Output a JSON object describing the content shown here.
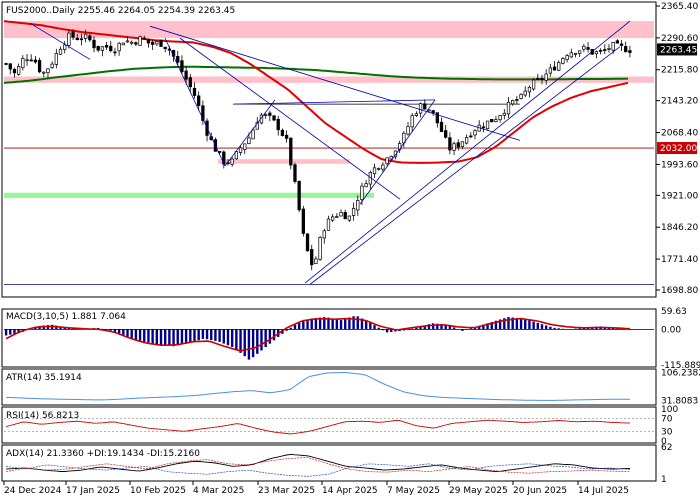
{
  "chart_data": {
    "type": "candlestick",
    "symbol": "FUS2000..Daily",
    "ohlc_header": "2255.46 2264.05 2254.39 2263.45",
    "x_labels": [
      "24 Dec 2024",
      "17 Jan 2025",
      "10 Feb 2025",
      "4 Mar 2025",
      "23 Mar 2025",
      "14 Apr 2025",
      "7 May 2025",
      "29 May 2025",
      "20 Jun 2025",
      "14 Jul 2025"
    ],
    "price_ticks": [
      "2365.40",
      "2290.60",
      "2215.80",
      "2143.20",
      "2068.40",
      "1993.60",
      "1921.00",
      "1846.20",
      "1771.40",
      "1698.80"
    ],
    "price_ylim": [
      1698.8,
      2365.4
    ],
    "current_price": "2263.45",
    "marked_level": "2032.00",
    "close_path": [
      2230,
      2205,
      2245,
      2245,
      2205,
      2230,
      2270,
      2295,
      2290,
      2292,
      2265,
      2270,
      2265,
      2285,
      2280,
      2290,
      2275,
      2280,
      2265,
      2230,
      2190,
      2150,
      2080,
      2035,
      2000,
      2000,
      2035,
      2060,
      2110,
      2105,
      2085,
      2050,
      1940,
      1810,
      1748,
      1840,
      1870,
      1880,
      1870,
      1920,
      1965,
      1990,
      2005,
      2030,
      2060,
      2110,
      2135,
      2120,
      2080,
      2030,
      2040,
      2060,
      2080,
      2090,
      2100,
      2120,
      2140,
      2150,
      2180,
      2190,
      2210,
      2230,
      2255,
      2262,
      2265,
      2255,
      2258,
      2272,
      2268,
      2263
    ],
    "ma_red": [
      2330,
      2325,
      2320,
      2312,
      2305,
      2300,
      2295,
      2290,
      2285,
      2282,
      2280,
      2270,
      2255,
      2230,
      2200,
      2170,
      2130,
      2090,
      2060,
      2030,
      2005,
      1998,
      1997,
      1998,
      2000,
      2010,
      2035,
      2070,
      2105,
      2130,
      2150,
      2165,
      2175,
      2185
    ],
    "ma_green": [
      2185,
      2190,
      2198,
      2205,
      2212,
      2218,
      2221,
      2223,
      2222,
      2221,
      2220,
      2218,
      2215,
      2210,
      2205,
      2200,
      2197,
      2195,
      2194,
      2193,
      2193,
      2193,
      2194,
      2194,
      2195
    ],
    "zones": [
      {
        "from": 2290,
        "to": 2330,
        "color": "#ffc0cb"
      },
      {
        "from": 2185,
        "to": 2200,
        "color": "#ffc0cb"
      },
      {
        "from": 1995,
        "to": 2006,
        "color": "#ffc0cb"
      },
      {
        "from": 1915,
        "to": 1927,
        "color": "#98f598"
      }
    ],
    "macd": {
      "label": "MACD(3,10,5) 1.881 7.064",
      "ticks": [
        "59.63",
        "0.00",
        "-115.889"
      ],
      "ylim": [
        -115.889,
        59.63
      ]
    },
    "atr": {
      "label": "ATR(14) 35.1914",
      "ticks": [
        "106.2382",
        "31.8083"
      ],
      "ylim": [
        25,
        110
      ]
    },
    "rsi": {
      "label": "RSI(14) 56.8213",
      "ticks": [
        "100",
        "70",
        "30",
        "0"
      ],
      "ylim": [
        0,
        100
      ]
    },
    "adx": {
      "label": "ADX(14) 21.3360 +DI:19.1434 -DI:15.2160",
      "ticks": [
        "62",
        "1"
      ],
      "ylim": [
        1,
        62
      ]
    },
    "colors": {
      "up": "#000000",
      "down": "#000000",
      "ma_fast": "#e00000",
      "ma_slow": "#007000",
      "trend": "#0000aa",
      "hist": "#00008b",
      "signal": "#cc0000",
      "atr": "#4a90e2",
      "rsi": "#cc0000"
    }
  }
}
